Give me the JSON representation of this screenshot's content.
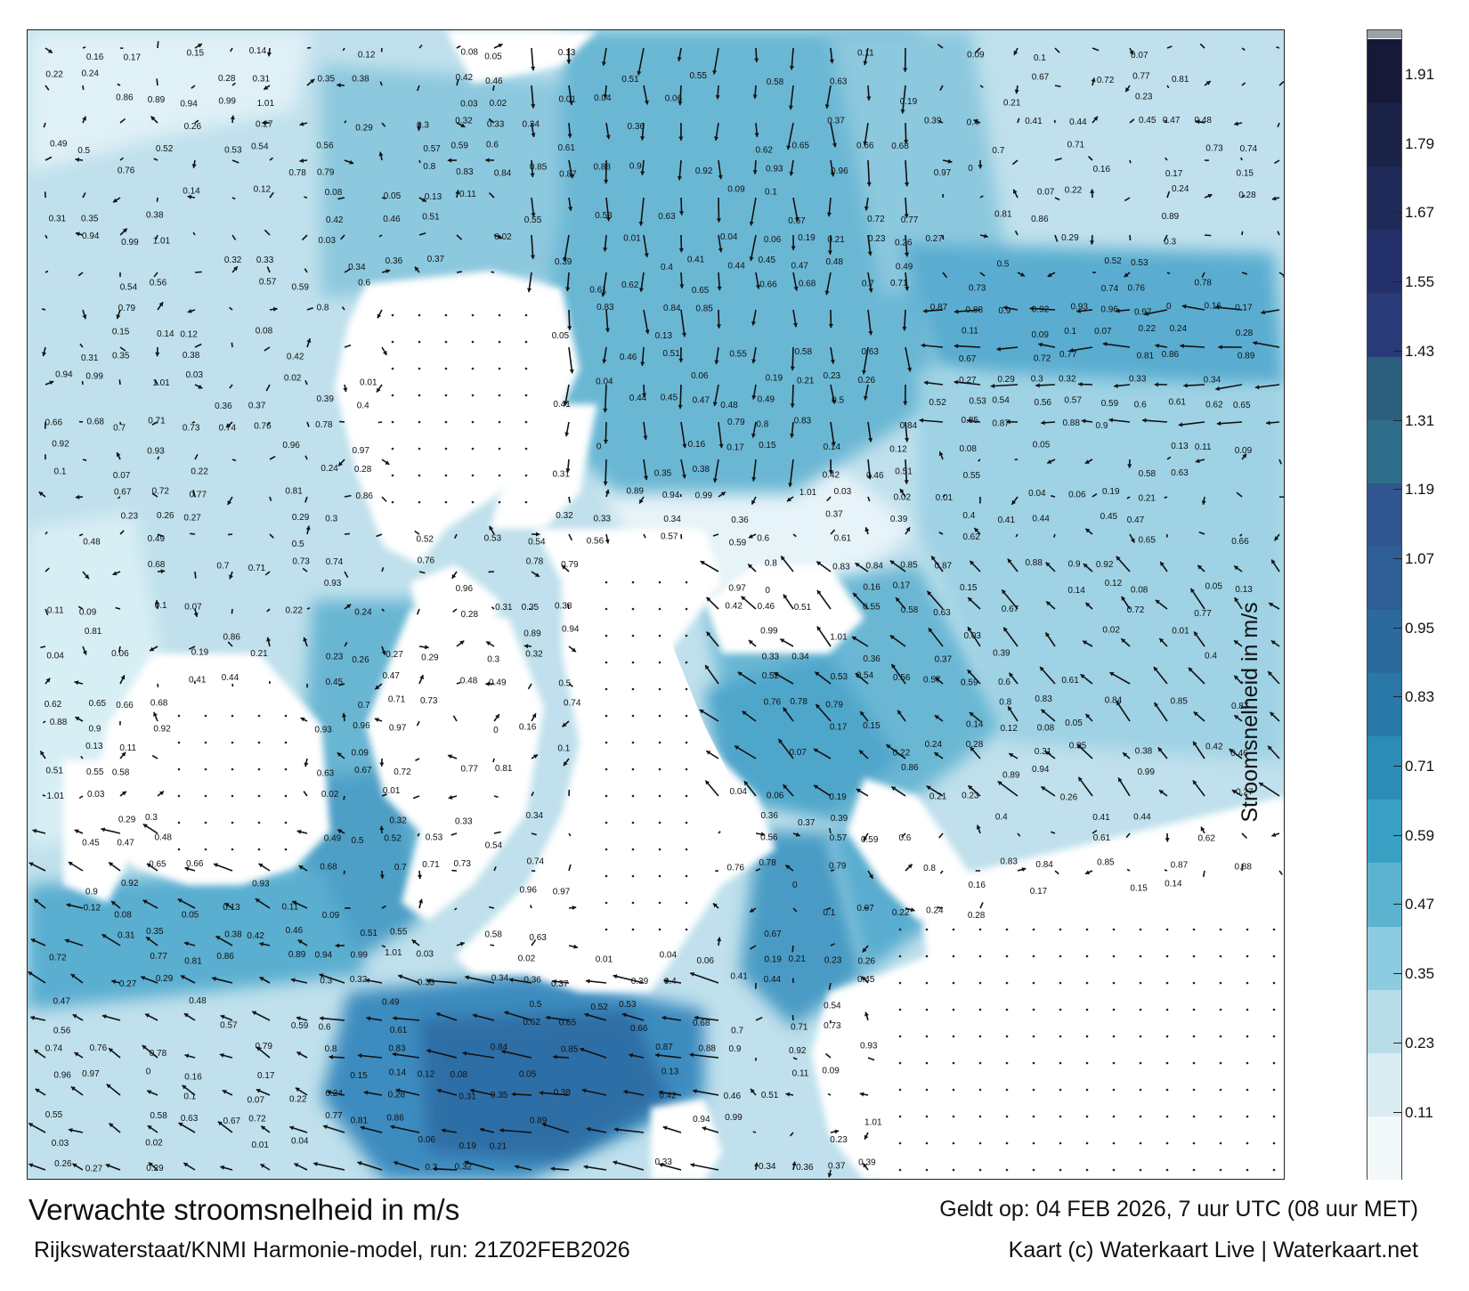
{
  "map": {
    "title": "Verwachte stroomsnelheid in m/s",
    "valid_time": "Geldt op: 04 FEB 2026, 7 uur UTC (08 uur MET)",
    "model_run": "Rijkswaterstaat/KNMI Harmonie-model, run: 21Z02FEB2026",
    "credit": "Kaart (c) Waterkaart Live | Waterkaart.net",
    "land_color": "#ffffff",
    "arrow_color": "#111111",
    "value_labels": [
      "0.16",
      "0.17",
      "0.15",
      "0.14",
      "0.12",
      "0.08",
      "0.05",
      "0.13",
      "0.11",
      "0.09",
      "0.1",
      "0.07",
      "0.22",
      "0.24",
      "0.28",
      "0.31",
      "0.35",
      "0.38",
      "0.42",
      "0.46",
      "0.51",
      "0.55",
      "0.58",
      "0.63",
      "0.67",
      "0.72",
      "0.77",
      "0.81",
      "0.86",
      "0.89",
      "0.94",
      "0.99",
      "1.01",
      "0.03",
      "0.02",
      "0.01",
      "0.04",
      "0.06",
      "0.19",
      "0.21",
      "0.23",
      "0.26",
      "0.27",
      "0.29",
      "0.3",
      "0.32",
      "0.33",
      "0.34",
      "0.36",
      "0.37",
      "0.39",
      "0.4",
      "0.41",
      "0.44",
      "0.45",
      "0.47",
      "0.48",
      "0.49",
      "0.5",
      "0.52",
      "0.53",
      "0.54",
      "0.56",
      "0.57",
      "0.59",
      "0.6",
      "0.61",
      "0.62",
      "0.65",
      "0.66",
      "0.68",
      "0.7",
      "0.71",
      "0.73",
      "0.74",
      "0.76",
      "0.78",
      "0.79",
      "0.8",
      "0.83",
      "0.84",
      "0.85",
      "0.87",
      "0.88",
      "0.9",
      "0.92",
      "0.93",
      "0.96",
      "0.97",
      "0"
    ]
  },
  "legend": {
    "label": "Stroomsnelheid in m/s",
    "ticks": [
      "1.91",
      "1.79",
      "1.67",
      "1.55",
      "1.43",
      "1.31",
      "1.19",
      "1.07",
      "0.95",
      "0.83",
      "0.71",
      "0.59",
      "0.47",
      "0.35",
      "0.23",
      "0.11"
    ],
    "colors": [
      "#f3f8fa",
      "#d9ecf2",
      "#b8dde9",
      "#8ccbe0",
      "#5cb3d0",
      "#3aa0c3",
      "#2b8cb5",
      "#2a78a8",
      "#2c6a9e",
      "#2f5e96",
      "#31558f",
      "#2f6e8a",
      "#2c5f7c",
      "#283a78",
      "#24306a",
      "#1f2a58",
      "#1b2248",
      "#161a38",
      "#9ba3a8"
    ]
  }
}
